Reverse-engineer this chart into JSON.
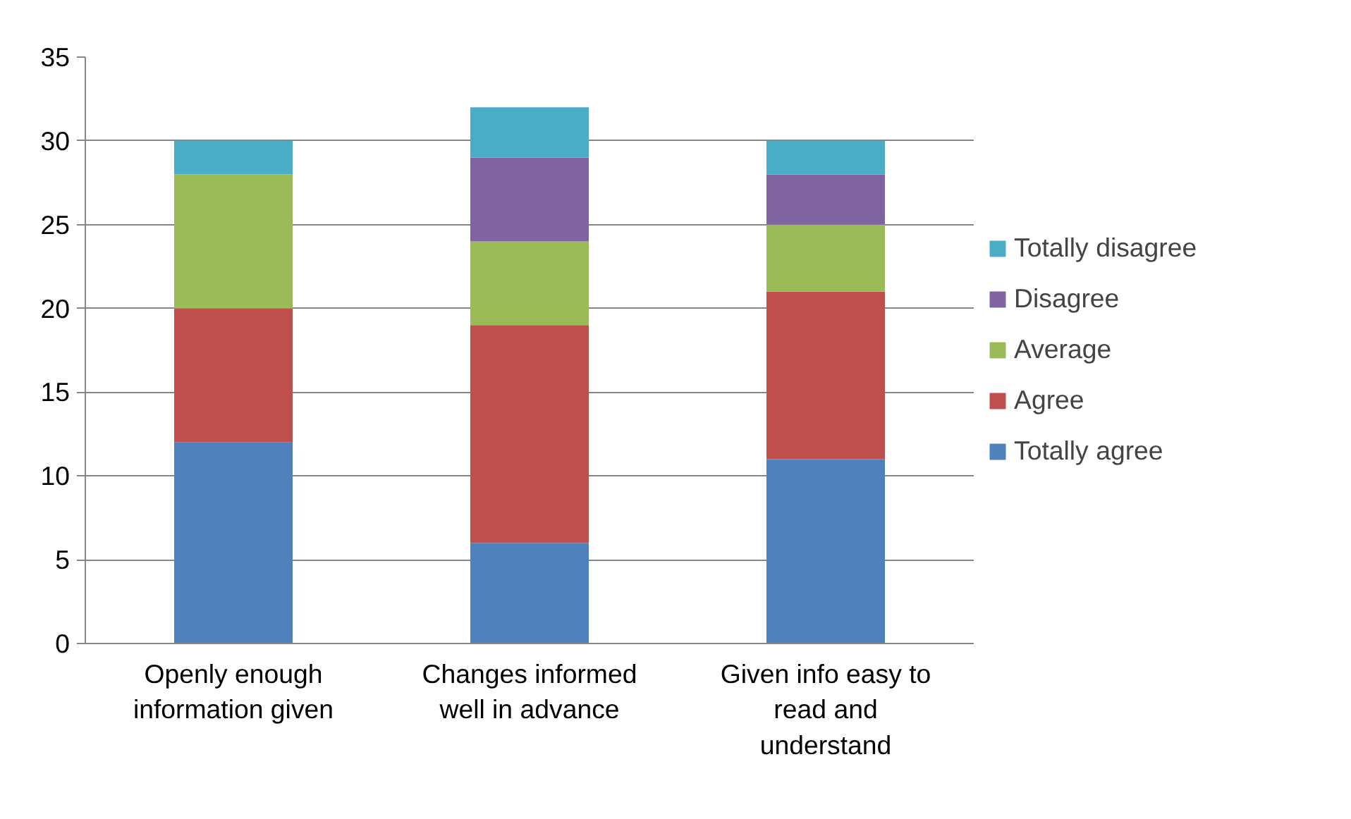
{
  "chart_data": {
    "type": "bar",
    "stacked": true,
    "categories": [
      "Openly enough information given",
      "Changes informed well in advance",
      "Given info easy to read and understand"
    ],
    "series": [
      {
        "name": "Totally agree",
        "color": "#4f81bd",
        "values": [
          12,
          6,
          11
        ]
      },
      {
        "name": "Agree",
        "color": "#c0504d",
        "values": [
          8,
          13,
          10
        ]
      },
      {
        "name": "Average",
        "color": "#9bbb59",
        "values": [
          8,
          5,
          4
        ]
      },
      {
        "name": "Disagree",
        "color": "#8064a2",
        "values": [
          0,
          5,
          3
        ]
      },
      {
        "name": "Totally disagree",
        "color": "#4bacc6",
        "values": [
          2,
          3,
          2
        ]
      }
    ],
    "ylim": [
      0,
      35
    ],
    "yticks": [
      0,
      5,
      10,
      15,
      20,
      25,
      30,
      35
    ],
    "grid": "y",
    "legend": "right"
  }
}
